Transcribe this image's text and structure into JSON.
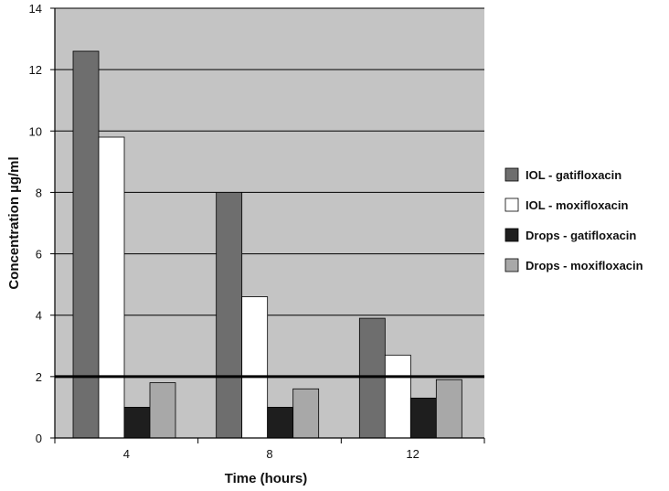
{
  "chart_data": {
    "type": "bar",
    "title": "",
    "xlabel": "Time (hours)",
    "ylabel": "Concentration µg/ml",
    "categories": [
      "4",
      "8",
      "12"
    ],
    "ylim": [
      0,
      14
    ],
    "yticks": [
      "0",
      "2",
      "4",
      "6",
      "8",
      "10",
      "12",
      "14"
    ],
    "grid": true,
    "legend_position": "right",
    "reference_line": {
      "y": 2
    },
    "series": [
      {
        "name": "IOL - gatifloxacin",
        "color": "#6e6e6e",
        "values": [
          12.6,
          8.0,
          3.9
        ]
      },
      {
        "name": "IOL - moxifloxacin",
        "color": "#ffffff",
        "values": [
          9.8,
          4.6,
          2.7
        ]
      },
      {
        "name": "Drops - gatifloxacin",
        "color": "#1e1e1e",
        "values": [
          1.0,
          1.0,
          1.3
        ]
      },
      {
        "name": "Drops - moxifloxacin",
        "color": "#a8a8a8",
        "values": [
          1.8,
          1.6,
          1.9
        ]
      }
    ],
    "colors": {
      "plot_background": "#c4c4c4",
      "gridline": "#000000",
      "reference_line": "#000000"
    }
  }
}
